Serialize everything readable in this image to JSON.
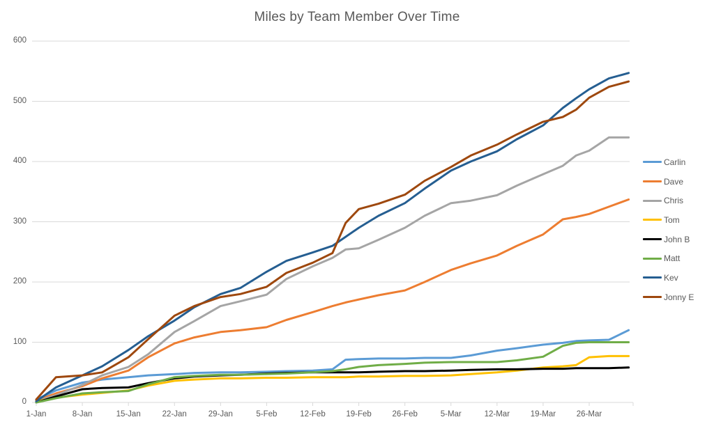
{
  "title": "Miles by Team Member Over Time",
  "chart_data": {
    "type": "line",
    "title": "Miles by Team Member Over Time",
    "xlabel": "",
    "ylabel": "",
    "ylim": [
      0,
      600
    ],
    "y_ticks": [
      0,
      100,
      200,
      300,
      400,
      500,
      600
    ],
    "x_axis_tick_labels": [
      "1-Jan",
      "8-Jan",
      "15-Jan",
      "22-Jan",
      "29-Jan",
      "5-Feb",
      "12-Feb",
      "19-Feb",
      "26-Feb",
      "5-Mar",
      "12-Mar",
      "19-Mar",
      "26-Mar"
    ],
    "grid": "horizontal-only",
    "legend_position": "right",
    "x": [
      "1-Jan",
      "4-Jan",
      "8-Jan",
      "11-Jan",
      "15-Jan",
      "18-Jan",
      "22-Jan",
      "25-Jan",
      "29-Jan",
      "1-Feb",
      "5-Feb",
      "8-Feb",
      "12-Feb",
      "15-Feb",
      "17-Feb",
      "19-Feb",
      "22-Feb",
      "26-Feb",
      "1-Mar",
      "5-Mar",
      "8-Mar",
      "12-Mar",
      "15-Mar",
      "19-Mar",
      "22-Mar",
      "24-Mar",
      "26-Mar",
      "29-Mar",
      "31-Mar"
    ],
    "x_day_index": [
      0,
      3,
      7,
      10,
      14,
      17,
      21,
      24,
      28,
      31,
      35,
      38,
      42,
      45,
      47,
      49,
      52,
      56,
      59,
      63,
      66,
      70,
      73,
      77,
      80,
      82,
      84,
      87,
      90
    ],
    "series": [
      {
        "name": "Carlin",
        "color": "#5B9BD5",
        "values": [
          5,
          20,
          33,
          38,
          42,
          45,
          47,
          49,
          50,
          50,
          51,
          52,
          53,
          55,
          71,
          72,
          73,
          73,
          74,
          74,
          78,
          86,
          90,
          96,
          99,
          102,
          103,
          104,
          120
        ]
      },
      {
        "name": "Dave",
        "color": "#ED7D31",
        "values": [
          3,
          15,
          27,
          40,
          53,
          75,
          98,
          108,
          117,
          120,
          125,
          137,
          150,
          160,
          166,
          171,
          178,
          186,
          200,
          220,
          231,
          244,
          260,
          279,
          304,
          308,
          313,
          325,
          337
        ]
      },
      {
        "name": "Chris",
        "color": "#A5A5A5",
        "values": [
          2,
          12,
          29,
          45,
          59,
          80,
          117,
          135,
          160,
          168,
          179,
          205,
          226,
          240,
          254,
          256,
          270,
          290,
          310,
          331,
          335,
          344,
          360,
          379,
          393,
          410,
          418,
          440,
          440
        ]
      },
      {
        "name": "Tom",
        "color": "#FFC000",
        "values": [
          2,
          8,
          13,
          16,
          20,
          28,
          36,
          38,
          40,
          40,
          41,
          41,
          42,
          42,
          42,
          43,
          43,
          44,
          44,
          45,
          47,
          50,
          53,
          58,
          60,
          62,
          75,
          77,
          77
        ]
      },
      {
        "name": "John B",
        "color": "#000000",
        "values": [
          0,
          10,
          22,
          24,
          25,
          32,
          40,
          43,
          45,
          46,
          48,
          49,
          50,
          50,
          50,
          50,
          51,
          52,
          52,
          53,
          54,
          55,
          55,
          56,
          56,
          57,
          57,
          57,
          58
        ]
      },
      {
        "name": "Matt",
        "color": "#70AD47",
        "values": [
          0,
          7,
          15,
          17,
          19,
          30,
          42,
          44,
          46,
          46,
          47,
          48,
          50,
          52,
          55,
          59,
          62,
          64,
          66,
          67,
          67,
          67,
          70,
          76,
          94,
          99,
          100,
          100,
          100
        ]
      },
      {
        "name": "Kev",
        "color": "#255E91",
        "values": [
          2,
          25,
          45,
          60,
          87,
          110,
          136,
          158,
          180,
          190,
          217,
          235,
          249,
          260,
          275,
          290,
          310,
          331,
          355,
          385,
          400,
          417,
          437,
          460,
          489,
          505,
          520,
          538,
          547
        ]
      },
      {
        "name": "Jonny E",
        "color": "#9E480E",
        "values": [
          5,
          42,
          45,
          50,
          75,
          105,
          144,
          160,
          175,
          180,
          192,
          215,
          232,
          248,
          298,
          321,
          330,
          345,
          368,
          391,
          410,
          428,
          445,
          466,
          474,
          486,
          506,
          524,
          533
        ]
      }
    ],
    "colors": {
      "gridline": "#D9D9D9",
      "axis_line": "#D9D9D9",
      "tick_text": "#595959",
      "title_text": "#595959"
    }
  }
}
